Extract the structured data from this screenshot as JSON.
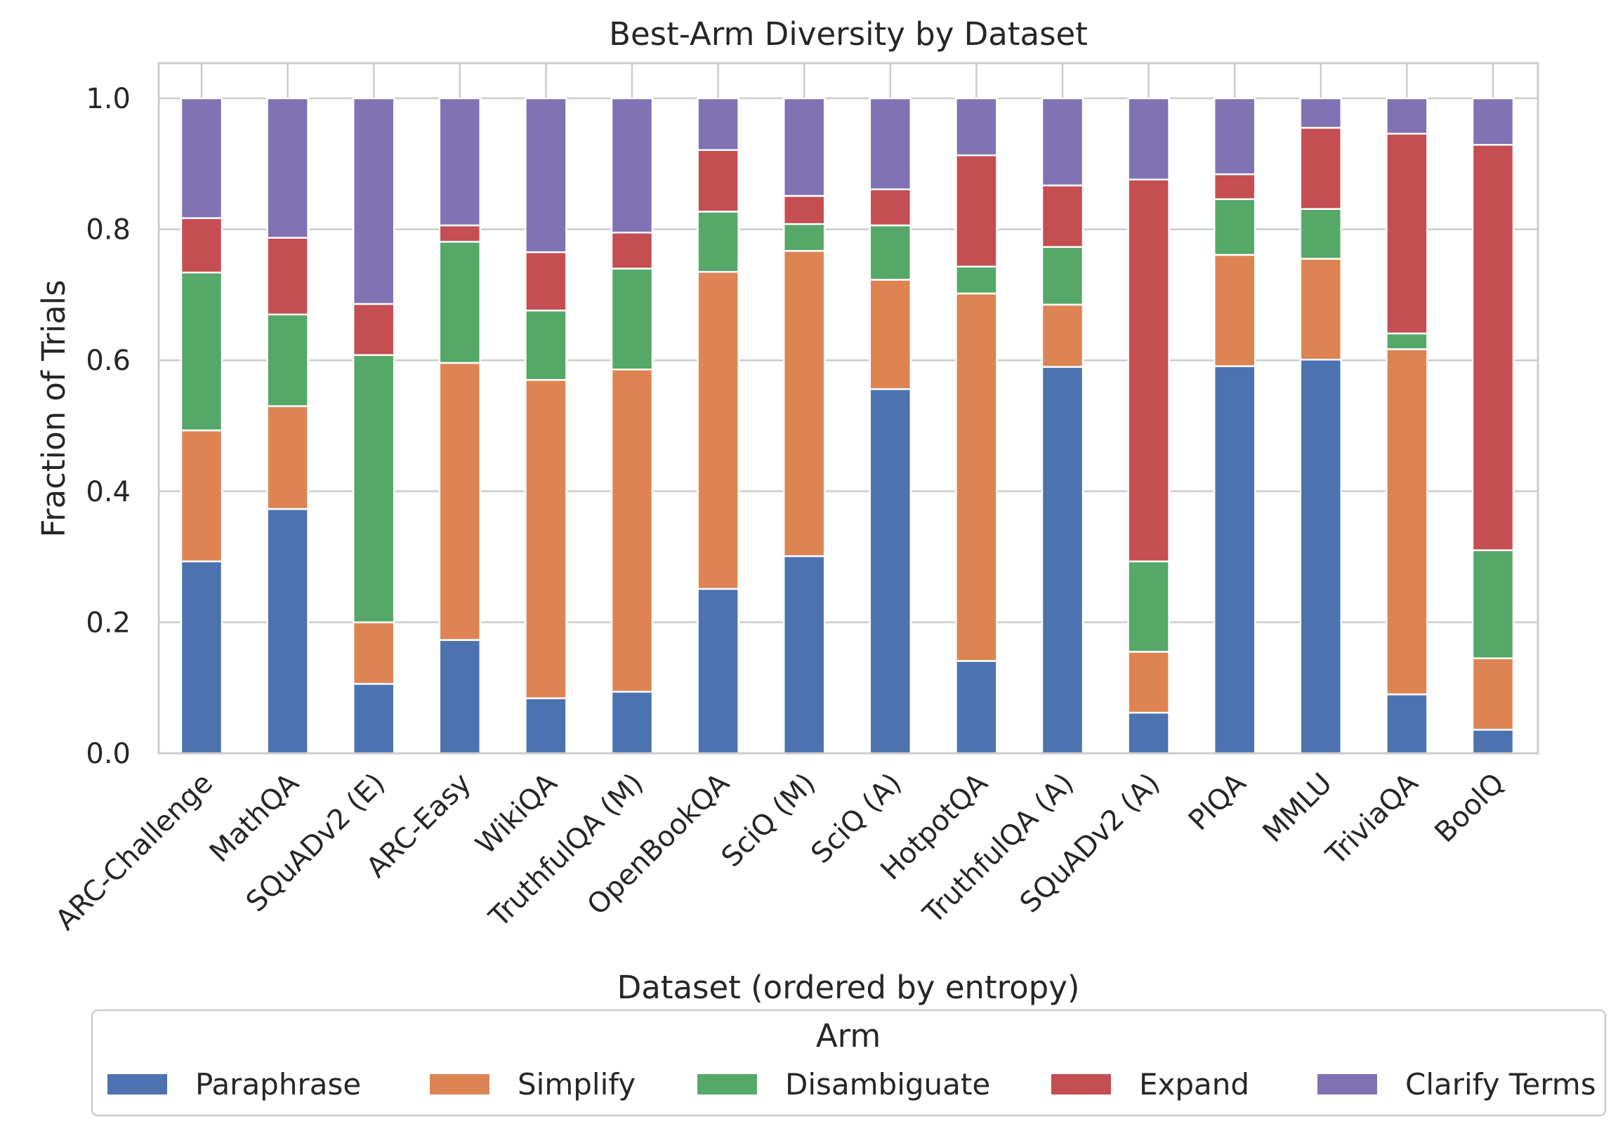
{
  "chart_data": {
    "type": "bar",
    "stacked": true,
    "title": "Best-Arm Diversity by Dataset",
    "xlabel": "Dataset (ordered by entropy)",
    "ylabel": "Fraction of Trials",
    "ylim": [
      0,
      1.05
    ],
    "yticks": [
      0.0,
      0.2,
      0.4,
      0.6,
      0.8,
      1.0
    ],
    "ytick_labels": [
      "0.0",
      "0.2",
      "0.4",
      "0.6",
      "0.8",
      "1.0"
    ],
    "grid": true,
    "legend_title": "Arm",
    "legend_position": "bottom",
    "categories": [
      "ARC-Challenge",
      "MathQA",
      "SQuADv2 (E)",
      "ARC-Easy",
      "WikiQA",
      "TruthfulQA (M)",
      "OpenBookQA",
      "SciQ (M)",
      "SciQ (A)",
      "HotpotQA",
      "TruthfulQA (A)",
      "SQuADv2 (A)",
      "PIQA",
      "MMLU",
      "TriviaQA",
      "BoolQ"
    ],
    "series": [
      {
        "name": "Paraphrase",
        "color": "#4c72b0",
        "values": [
          0.293,
          0.373,
          0.106,
          0.173,
          0.084,
          0.094,
          0.251,
          0.301,
          0.556,
          0.141,
          0.59,
          0.062,
          0.591,
          0.601,
          0.09,
          0.036
        ]
      },
      {
        "name": "Simplify",
        "color": "#dd8452",
        "values": [
          0.2,
          0.157,
          0.094,
          0.423,
          0.486,
          0.492,
          0.484,
          0.466,
          0.167,
          0.561,
          0.095,
          0.093,
          0.17,
          0.154,
          0.527,
          0.109
        ]
      },
      {
        "name": "Disambiguate",
        "color": "#55a868",
        "values": [
          0.241,
          0.14,
          0.408,
          0.185,
          0.106,
          0.154,
          0.092,
          0.041,
          0.083,
          0.041,
          0.088,
          0.138,
          0.085,
          0.076,
          0.024,
          0.165
        ]
      },
      {
        "name": "Expand",
        "color": "#c44e52",
        "values": [
          0.083,
          0.117,
          0.078,
          0.025,
          0.089,
          0.055,
          0.094,
          0.043,
          0.055,
          0.17,
          0.094,
          0.583,
          0.038,
          0.124,
          0.305,
          0.619
        ]
      },
      {
        "name": "Clarify Terms",
        "color": "#8172b3",
        "values": [
          0.183,
          0.213,
          0.314,
          0.194,
          0.235,
          0.205,
          0.079,
          0.149,
          0.139,
          0.087,
          0.133,
          0.124,
          0.116,
          0.045,
          0.054,
          0.071
        ]
      }
    ]
  }
}
